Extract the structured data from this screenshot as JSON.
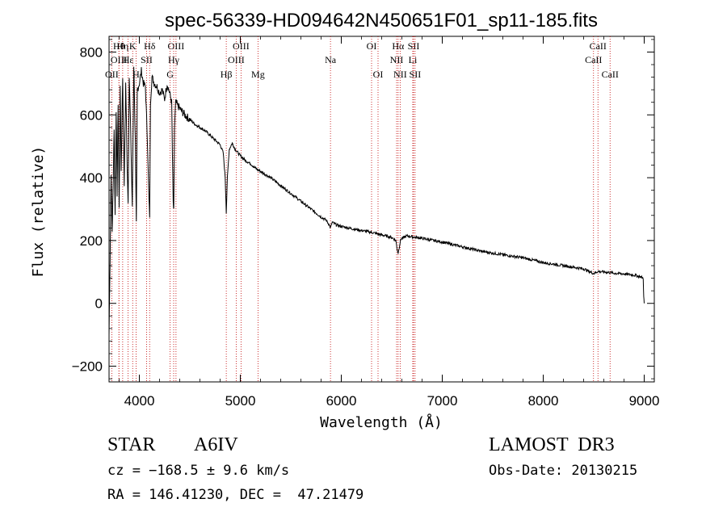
{
  "chart_data": {
    "type": "line",
    "title": "spec-56339-HD094642N450651F01_sp11-185.fits",
    "xlabel": "Wavelength (Å)",
    "ylabel": "Flux (relative)",
    "xlim": [
      3700,
      9100
    ],
    "ylim": [
      -250,
      850
    ],
    "xticks": [
      4000,
      5000,
      6000,
      7000,
      8000,
      9000
    ],
    "yticks": [
      -200,
      0,
      200,
      400,
      600,
      800
    ],
    "grid": false,
    "series": [
      {
        "name": "spectrum",
        "x": [
          3700,
          3710,
          3720,
          3730,
          3740,
          3750,
          3760,
          3770,
          3780,
          3790,
          3800,
          3810,
          3820,
          3835,
          3850,
          3865,
          3880,
          3889,
          3900,
          3915,
          3930,
          3945,
          3960,
          3970,
          3980,
          4000,
          4020,
          4040,
          4060,
          4080,
          4095,
          4102,
          4110,
          4125,
          4150,
          4175,
          4200,
          4225,
          4250,
          4275,
          4300,
          4320,
          4335,
          4341,
          4348,
          4360,
          4380,
          4400,
          4450,
          4500,
          4550,
          4600,
          4650,
          4700,
          4750,
          4800,
          4830,
          4850,
          4861,
          4872,
          4890,
          4920,
          4950,
          5000,
          5050,
          5100,
          5150,
          5200,
          5300,
          5400,
          5500,
          5600,
          5700,
          5800,
          5850,
          5880,
          5893,
          5910,
          5950,
          6000,
          6100,
          6200,
          6300,
          6400,
          6500,
          6540,
          6555,
          6563,
          6571,
          6590,
          6650,
          6700,
          6800,
          7000,
          7200,
          7400,
          7600,
          7800,
          8000,
          8200,
          8400,
          8500,
          8542,
          8600,
          8662,
          8700,
          8800,
          8900,
          8960,
          8990,
          8995,
          9000
        ],
        "values": [
          -100,
          140,
          420,
          230,
          360,
          560,
          280,
          620,
          350,
          640,
          300,
          680,
          420,
          720,
          380,
          700,
          430,
          320,
          720,
          540,
          300,
          760,
          520,
          250,
          680,
          700,
          740,
          700,
          690,
          520,
          330,
          280,
          640,
          720,
          700,
          690,
          670,
          680,
          650,
          700,
          670,
          640,
          320,
          290,
          560,
          640,
          630,
          620,
          600,
          585,
          570,
          560,
          550,
          535,
          520,
          505,
          480,
          400,
          290,
          400,
          490,
          510,
          490,
          470,
          455,
          445,
          430,
          420,
          400,
          375,
          350,
          325,
          300,
          275,
          265,
          250,
          240,
          258,
          250,
          245,
          238,
          232,
          226,
          218,
          210,
          200,
          170,
          160,
          175,
          205,
          215,
          212,
          207,
          195,
          180,
          165,
          155,
          145,
          130,
          120,
          110,
          95,
          102,
          100,
          98,
          96,
          94,
          90,
          85,
          80,
          20,
          0
        ]
      }
    ],
    "line_markers": [
      {
        "label": "OII",
        "x": 3727,
        "row": 3
      },
      {
        "label": "Hθ",
        "x": 3798,
        "row": 1
      },
      {
        "label": "OIII",
        "x": 3798,
        "row": 2
      },
      {
        "label": "Hη",
        "x": 3835,
        "row": 1
      },
      {
        "label": "K",
        "x": 3934,
        "row": 1
      },
      {
        "label": "Hε",
        "x": 3889,
        "row": 2
      },
      {
        "label": "H",
        "x": 3968,
        "row": 3
      },
      {
        "label": "SII",
        "x": 4072,
        "row": 2
      },
      {
        "label": "Hδ",
        "x": 4102,
        "row": 1
      },
      {
        "label": "OIII",
        "x": 4363,
        "row": 1
      },
      {
        "label": "Hγ",
        "x": 4340,
        "row": 2
      },
      {
        "label": "G",
        "x": 4305,
        "row": 3
      },
      {
        "label": "Hβ",
        "x": 4861,
        "row": 3
      },
      {
        "label": "OIII",
        "x": 5007,
        "row": 1
      },
      {
        "label": "OIII",
        "x": 4959,
        "row": 2
      },
      {
        "label": "Mg",
        "x": 5175,
        "row": 3
      },
      {
        "label": "Na",
        "x": 5893,
        "row": 2
      },
      {
        "label": "OI",
        "x": 6300,
        "row": 1
      },
      {
        "label": "OI",
        "x": 6364,
        "row": 3
      },
      {
        "label": "Hα",
        "x": 6563,
        "row": 1
      },
      {
        "label": "NII",
        "x": 6548,
        "row": 2
      },
      {
        "label": "NII",
        "x": 6583,
        "row": 3
      },
      {
        "label": "SII",
        "x": 6716,
        "row": 1
      },
      {
        "label": "Li",
        "x": 6708,
        "row": 2
      },
      {
        "label": "SII",
        "x": 6731,
        "row": 3
      },
      {
        "label": "CaII",
        "x": 8542,
        "row": 1
      },
      {
        "label": "CaII",
        "x": 8498,
        "row": 2
      },
      {
        "label": "CaII",
        "x": 8662,
        "row": 3
      }
    ]
  },
  "info": {
    "object_class": "STAR",
    "subclass": "A6IV",
    "survey": "LAMOST  DR3",
    "redshift": "cz = −168.5 ± 9.6 km/s",
    "obs_date": "Obs-Date: 20130215",
    "coordinates": "RA = 146.41230, DEC =  47.21479"
  }
}
